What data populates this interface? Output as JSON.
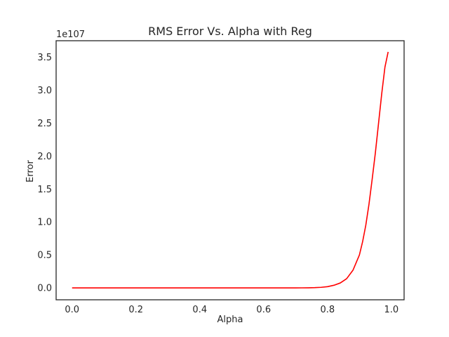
{
  "chart_data": {
    "type": "line",
    "title": "RMS Error Vs. Alpha with Reg",
    "xlabel": "Alpha",
    "ylabel": "Error",
    "y_offset_label": "1e107",
    "xlim": [
      -0.05,
      1.04
    ],
    "ylim": [
      -0.18,
      3.75
    ],
    "y_scale_note": "y values in units of 1e107",
    "grid": false,
    "x_ticks": [
      0.0,
      0.2,
      0.4,
      0.6,
      0.8,
      1.0
    ],
    "x_tick_labels": [
      "0.0",
      "0.2",
      "0.4",
      "0.6",
      "0.8",
      "1.0"
    ],
    "y_ticks": [
      0.0,
      0.5,
      1.0,
      1.5,
      2.0,
      2.5,
      3.0,
      3.5
    ],
    "y_tick_labels": [
      "0.0",
      "0.5",
      "1.0",
      "1.5",
      "2.0",
      "2.5",
      "3.0",
      "3.5"
    ],
    "series": [
      {
        "color": "#ff0000",
        "x": [
          0.0,
          0.1,
          0.2,
          0.3,
          0.4,
          0.5,
          0.6,
          0.65,
          0.7,
          0.72,
          0.74,
          0.76,
          0.78,
          0.8,
          0.82,
          0.84,
          0.86,
          0.88,
          0.9,
          0.91,
          0.92,
          0.93,
          0.94,
          0.95,
          0.96,
          0.97,
          0.98,
          0.99
        ],
        "y": [
          0.0,
          0.0,
          0.0,
          0.0,
          0.0,
          0.0,
          0.0,
          0.0,
          0.0,
          0.001,
          0.002,
          0.004,
          0.009,
          0.019,
          0.04,
          0.075,
          0.14,
          0.27,
          0.5,
          0.7,
          0.95,
          1.27,
          1.65,
          2.05,
          2.5,
          2.95,
          3.35,
          3.58
        ]
      }
    ]
  }
}
